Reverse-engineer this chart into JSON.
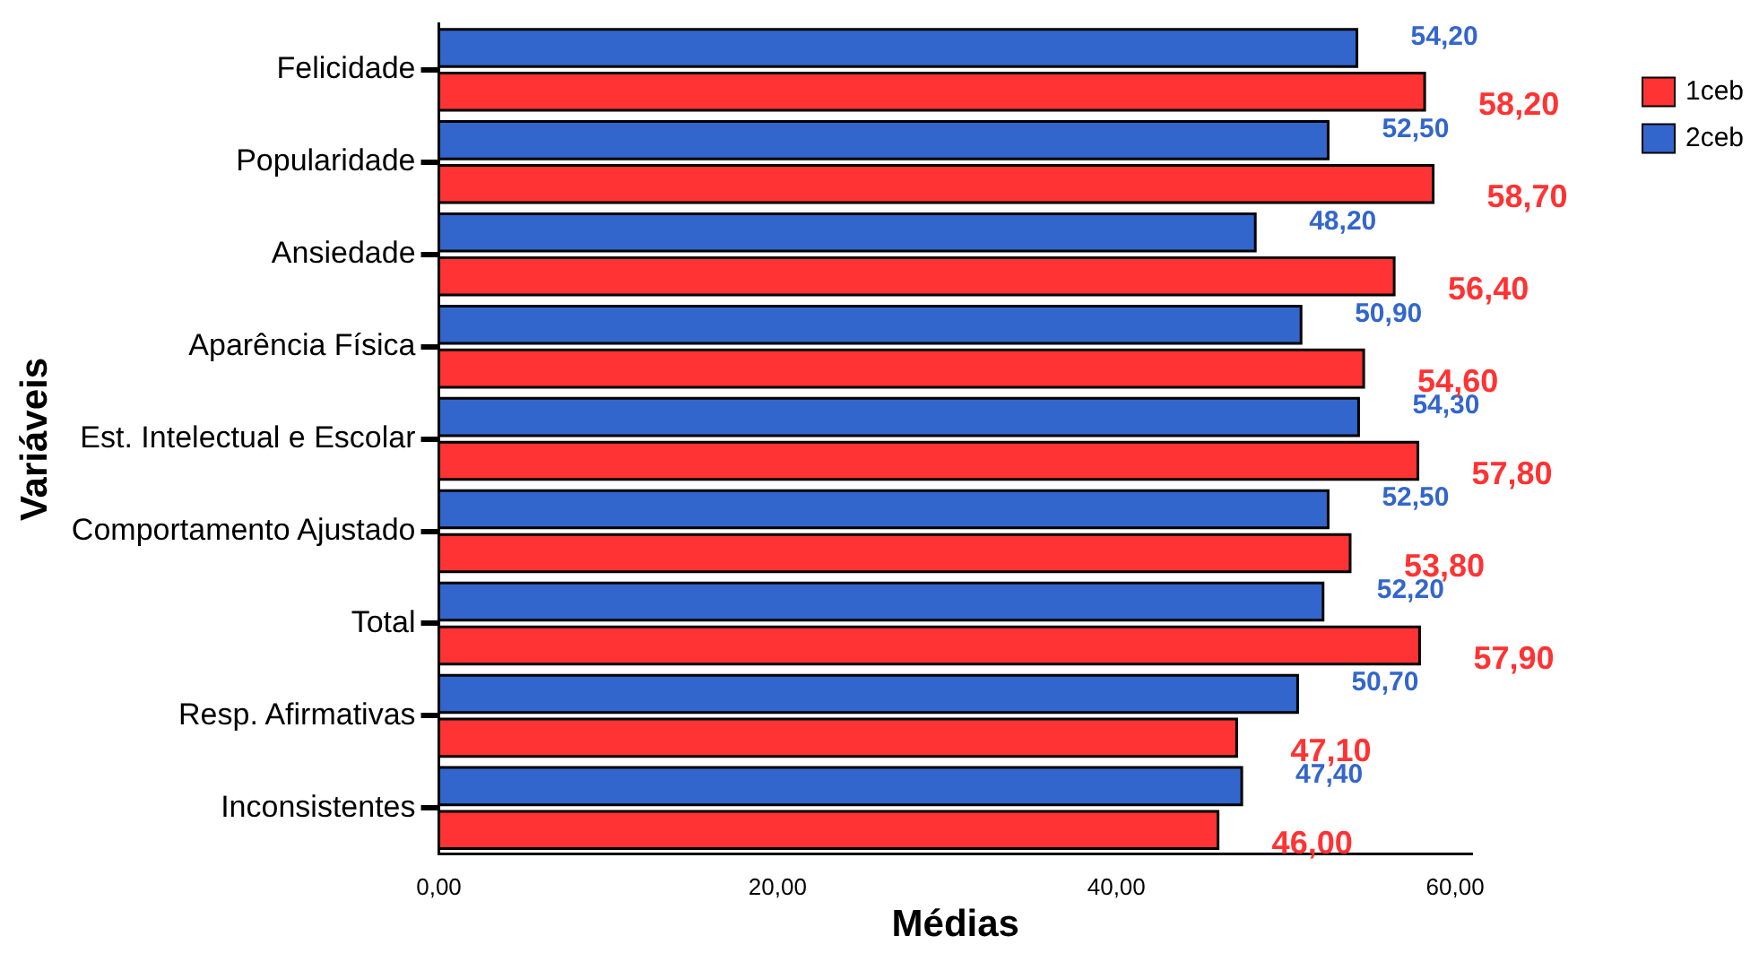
{
  "chart_data": {
    "type": "bar",
    "orientation": "horizontal",
    "xlabel": "Médias",
    "ylabel": "Variáveis",
    "categories": [
      "Felicidade",
      "Popularidade",
      "Ansiedade",
      "Aparência Física",
      "Est. Intelectual e Escolar",
      "Comportamento Ajustado",
      "Total",
      "Resp. Afirmativas",
      "Inconsistentes"
    ],
    "series": [
      {
        "name": "2ceb",
        "color": "#3366cc",
        "values": [
          54.2,
          52.5,
          48.2,
          50.9,
          54.3,
          52.5,
          52.2,
          50.7,
          47.4
        ],
        "value_labels": [
          "54,20",
          "52,50",
          "48,20",
          "50,90",
          "54,30",
          "52,50",
          "52,20",
          "50,70",
          "47,40"
        ]
      },
      {
        "name": "1ceb",
        "color": "#ff3333",
        "values": [
          58.2,
          58.7,
          56.4,
          54.6,
          57.8,
          53.8,
          57.9,
          47.1,
          46.0
        ],
        "value_labels": [
          "58,20",
          "58,70",
          "56,40",
          "54,60",
          "57,80",
          "53,80",
          "57,90",
          "47,10",
          "46,00"
        ]
      }
    ],
    "xlim": [
      0,
      61
    ],
    "xticks": [
      {
        "value": 0,
        "label": "0,00"
      },
      {
        "value": 20,
        "label": "20,00"
      },
      {
        "value": 40,
        "label": "40,00"
      },
      {
        "value": 60,
        "label": "60,00"
      }
    ],
    "grid": false,
    "legend": "top right"
  }
}
